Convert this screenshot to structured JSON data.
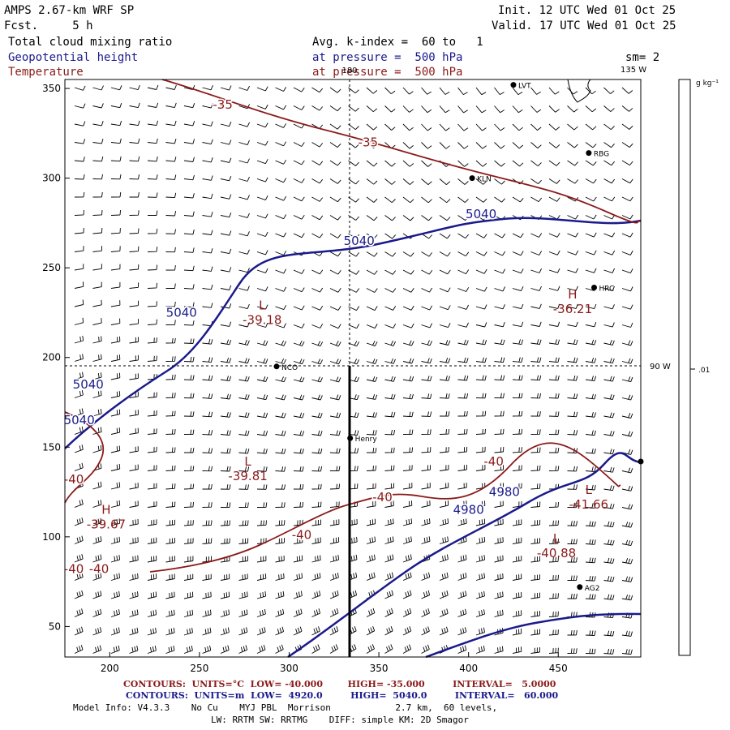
{
  "header": {
    "model": "AMPS 2.67-km WRF SP",
    "forecast": "Fcst.     5 h",
    "init": "Init. 12 UTC Wed 01 Oct 25",
    "valid": "Valid. 17 UTC Wed 01 Oct 25",
    "field1": "Total cloud mixing ratio",
    "field1_info": "Avg. k-index =  60 to   1",
    "field2": "Geopotential height",
    "field2_info": "at pressure =  500 hPa",
    "field3": "Temperature",
    "field3_info": "at pressure =  500 hPa",
    "smoothing": "sm= 2"
  },
  "map": {
    "meridian_top": "180",
    "meridian_135": "135 W",
    "meridian_90": "90 W",
    "x_ticks": [
      "200",
      "250",
      "300",
      "350",
      "400",
      "450"
    ],
    "y_ticks": [
      "350",
      "300",
      "250",
      "200",
      "150",
      "100",
      "50"
    ],
    "stations": [
      {
        "name": "LVT",
        "x": 425,
        "y": 352
      },
      {
        "name": "RBG",
        "x": 467,
        "y": 314
      },
      {
        "name": "KLN",
        "x": 402,
        "y": 300
      },
      {
        "name": "HRC",
        "x": 470,
        "y": 239
      },
      {
        "name": "NCO",
        "x": 293,
        "y": 195
      },
      {
        "name": "Henry",
        "x": 334,
        "y": 155
      },
      {
        "name": "AG2",
        "x": 462,
        "y": 72
      },
      {
        "name": "",
        "x": 496,
        "y": 142
      }
    ],
    "height_labels": [
      {
        "text": "5040",
        "x": 407,
        "y": 280
      },
      {
        "text": "5040",
        "x": 339,
        "y": 265
      },
      {
        "text": "5040",
        "x": 240,
        "y": 225
      },
      {
        "text": "5040",
        "x": 188,
        "y": 185
      },
      {
        "text": "5040",
        "x": 183,
        "y": 165
      },
      {
        "text": "4980",
        "x": 420,
        "y": 125
      },
      {
        "text": "4980",
        "x": 400,
        "y": 115
      }
    ],
    "temperature_labels": [
      {
        "text": "-35",
        "x": 263,
        "y": 341
      },
      {
        "text": "-35",
        "x": 344,
        "y": 320
      },
      {
        "text": "-40",
        "x": 180,
        "y": 132
      },
      {
        "text": "-40",
        "x": 352,
        "y": 122
      },
      {
        "text": "-40",
        "x": 414,
        "y": 142
      },
      {
        "text": "-40",
        "x": 307,
        "y": 101
      },
      {
        "text": "-40",
        "x": 180,
        "y": 82
      },
      {
        "text": "-40",
        "x": 194,
        "y": 82
      }
    ],
    "extrema": [
      {
        "symbol": "L",
        "value": "-39.18",
        "x": 285,
        "y": 225
      },
      {
        "symbol": "H",
        "value": "-36.21",
        "x": 458,
        "y": 231
      },
      {
        "symbol": "L",
        "value": "-39.81",
        "x": 277,
        "y": 138
      },
      {
        "symbol": "H",
        "value": "-39.67",
        "x": 198,
        "y": 111
      },
      {
        "symbol": "L",
        "value": "-41.66",
        "x": 467,
        "y": 122
      },
      {
        "symbol": "L",
        "value": "-40.88",
        "x": 449,
        "y": 95
      }
    ]
  },
  "colorbar": {
    "units": "g kg⁻¹",
    "tick": ".01"
  },
  "footer": {
    "contours_temp": "CONTOURS:  UNITS=°C  LOW= -40.000        HIGH= -35.000         INTERVAL=   5.0000",
    "contours_height": "CONTOURS:  UNITS=m  LOW=  4920.0         HIGH=  5040.0         INTERVAL=   60.000",
    "model_info": "Model Info: V4.3.3    No Cu    MYJ PBL  Morrison            2.7 km,  60 levels,",
    "model_info2": "LW: RRTM SW: RRTMG    DIFF: simple KM: 2D Smagor"
  },
  "colors": {
    "height": "#1a1a8c",
    "temperature": "#8b1a1a",
    "text": "#000000"
  }
}
